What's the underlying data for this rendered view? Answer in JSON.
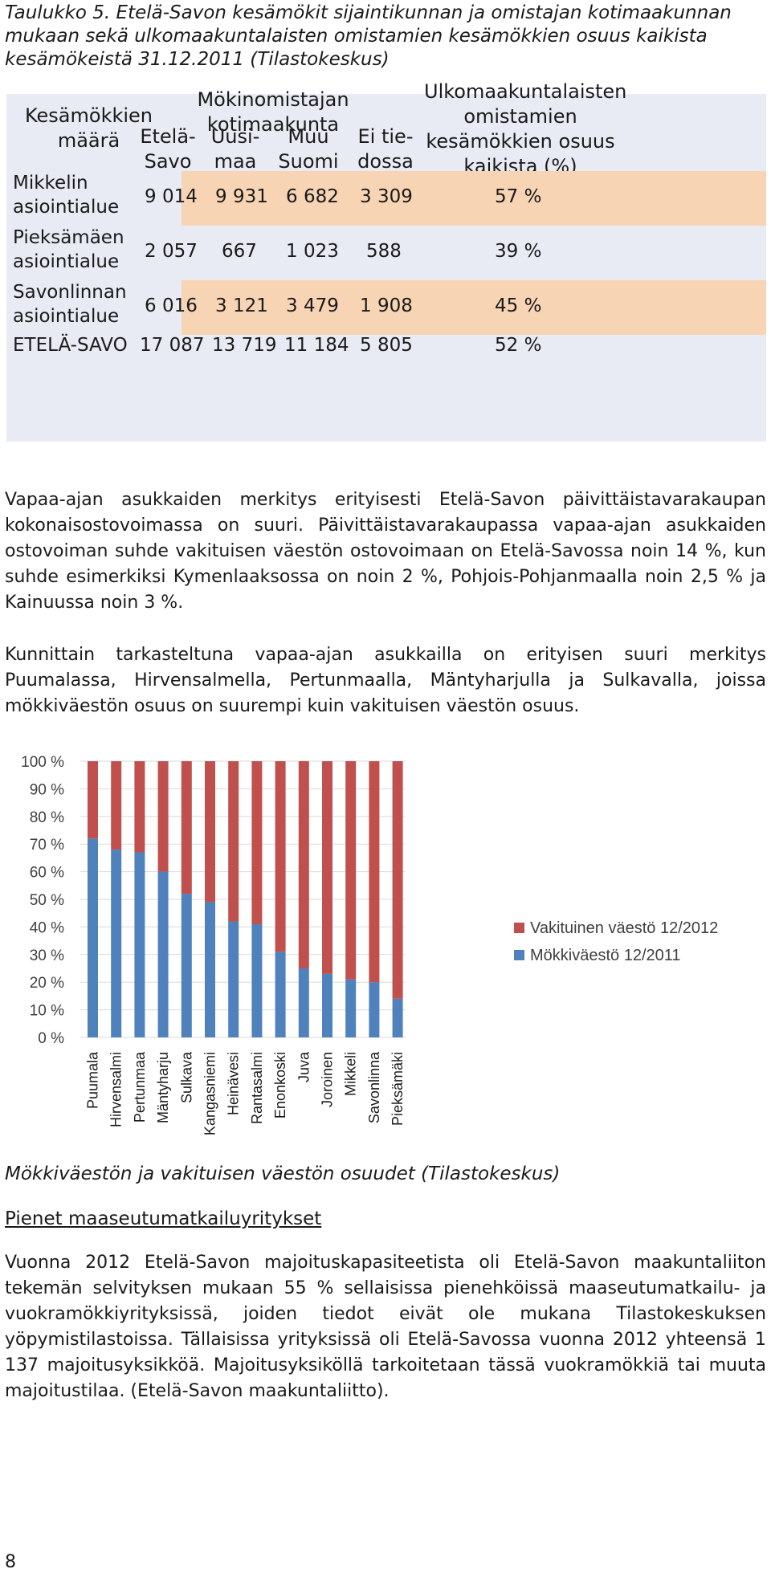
{
  "table_caption": "Taulukko 5. Etelä-Savon kesämökit sijaintikunnan ja omistajan kotimaakunnan mukaan sekä ulkomaakuntalaisten omistamien kesämökkien osuus kaikista kesämökeistä 31.12.2011 (Tilastokeskus)",
  "table": {
    "header_count": "Kesämökkien määrä",
    "header_group": "Mökinomistajan kotimaakunta",
    "header_cols": [
      "Etelä-Savo",
      "Uusi-maa",
      "Muu Suomi",
      "Ei tie-dossa"
    ],
    "header_share": "Ulkomaakuntalaisten omistamien kesämökkien osuus kaikista (%)",
    "rows": [
      {
        "label": "Mikkelin asiointialue",
        "values": [
          "9 014",
          "9 931",
          "6 682",
          "3 309"
        ],
        "share": "57 %"
      },
      {
        "label": "Pieksämäen asiointialue",
        "values": [
          "2 057",
          "667",
          "1 023",
          "588"
        ],
        "share": "39 %"
      },
      {
        "label": "Savonlinnan asiointialue",
        "values": [
          "6 016",
          "3 121",
          "3 479",
          "1 908"
        ],
        "share": "45 %"
      },
      {
        "label": "ETELÄ-SAVO",
        "values": [
          "17 087",
          "13 719",
          "11 184",
          "5 805"
        ],
        "share": "52 %"
      }
    ]
  },
  "paragraph1": "Vapaa-ajan asukkaiden merkitys erityisesti Etelä-Savon päivittäistavarakaupan kokonaisostovoimassa on suuri. Päivittäistavarakaupassa vapaa-ajan asukkaiden ostovoiman suhde vakituisen väestön ostovoimaan on Etelä-Savossa noin 14 %, kun suhde esimerkiksi Kymenlaaksossa on noin 2 %, Pohjois-Pohjanmaalla noin 2,5 % ja Kainuussa noin 3 %.",
  "paragraph2": "Kunnittain tarkasteltuna vapaa-ajan asukkailla on erityisen suuri merkitys Puumalassa, Hirvensalmella, Pertunmaalla, Mäntyharjulla ja Sulkavalla, joissa mökkiväestön osuus on suurempi kuin vakituisen väestön osuus.",
  "chart_data": {
    "type": "bar",
    "stacked": true,
    "categories": [
      "Puumala",
      "Hirvensalmi",
      "Pertunmaa",
      "Mäntyharju",
      "Sulkava",
      "Kangasniemi",
      "Heinävesi",
      "Rantasalmi",
      "Enonkoski",
      "Juva",
      "Joroinen",
      "Mikkeli",
      "Savonlinna",
      "Pieksämäki"
    ],
    "series": [
      {
        "name": "Mökkiväestö 12/2011",
        "color": "#4f81bd",
        "values": [
          72,
          68,
          67,
          60,
          52,
          49,
          42,
          41,
          31,
          25,
          23,
          21,
          20,
          14
        ]
      },
      {
        "name": "Vakituinen väestö 12/2012",
        "color": "#c0504d",
        "values": [
          28,
          32,
          33,
          40,
          48,
          51,
          58,
          59,
          69,
          75,
          77,
          79,
          80,
          86
        ]
      }
    ],
    "y_ticks": [
      "0 %",
      "10 %",
      "20 %",
      "30 %",
      "40 %",
      "50 %",
      "60 %",
      "70 %",
      "80 %",
      "90 %",
      "100 %"
    ],
    "ylim": [
      0,
      100
    ],
    "grid": true,
    "legend_position": "right"
  },
  "figure_caption": "Mökkiväestön ja vakituisen väestön osuudet (Tilastokeskus)",
  "section_title": "Pienet maaseutumatkailuyritykset",
  "paragraph3": "Vuonna 2012 Etelä-Savon majoituskapasiteetista oli Etelä-Savon maakuntaliiton tekemän selvityksen mukaan 55 % sellaisissa pienehköissä maaseutumatkailu- ja vuokramökkiyrityksissä, joiden tiedot eivät ole mukana Tilastokeskuksen yöpymistilastoissa. Tällaisissa yrityksissä oli Etelä-Savossa vuonna 2012 yhteensä 1 137 majoitusyksikköä. Majoitusyksiköllä tarkoitetaan tässä vuokramökkiä tai muuta majoitustilaa. (Etelä-Savon maakuntaliitto).",
  "page_number": "8"
}
